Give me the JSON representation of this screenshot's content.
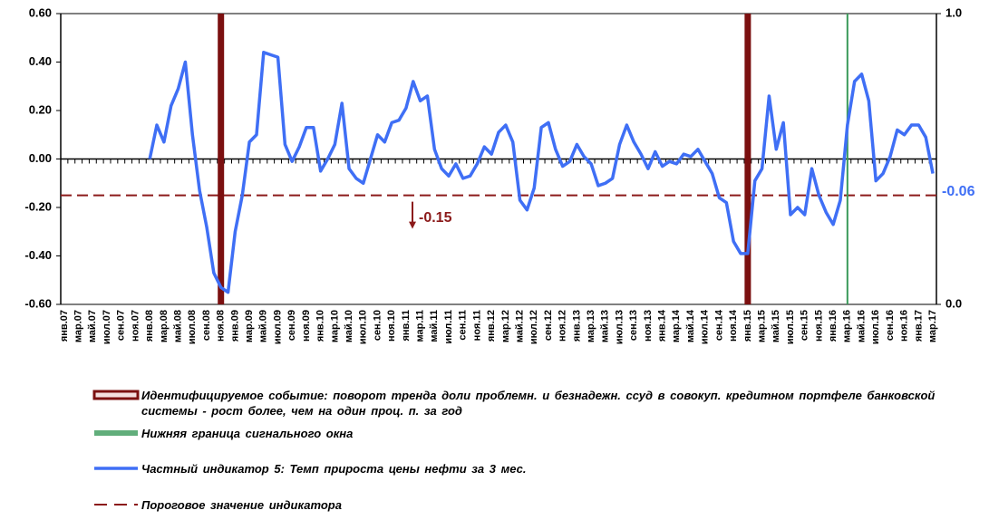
{
  "chart_data": {
    "type": "line",
    "categories": [
      "янв.07",
      null,
      "мар.07",
      null,
      "май.07",
      null,
      "июл.07",
      null,
      "сен.07",
      null,
      "ноя.07",
      null,
      "янв.08",
      null,
      "мар.08",
      null,
      "май.08",
      null,
      "июл.08",
      null,
      "сен.08",
      null,
      "ноя.08",
      null,
      "янв.09",
      null,
      "мар.09",
      null,
      "май.09",
      null,
      "июл.09",
      null,
      "сен.09",
      null,
      "ноя.09",
      null,
      "янв.10",
      null,
      "мар.10",
      null,
      "май.10",
      null,
      "июл.10",
      null,
      "сен.10",
      null,
      "ноя.10",
      null,
      "янв.11",
      null,
      "мар.11",
      null,
      "май.11",
      null,
      "июл.11",
      null,
      "сен.11",
      null,
      "ноя.11",
      null,
      "янв.12",
      null,
      "мар.12",
      null,
      "май.12",
      null,
      "июл.12",
      null,
      "сен.12",
      null,
      "ноя.12",
      null,
      "янв.13",
      null,
      "мар.13",
      null,
      "май.13",
      null,
      "июл.13",
      null,
      "сен.13",
      null,
      "ноя.13",
      null,
      "янв.14",
      null,
      "мар.14",
      null,
      "май.14",
      null,
      "июл.14",
      null,
      "сен.14",
      null,
      "ноя.14",
      null,
      "янв.15",
      null,
      "мар.15",
      null,
      "май.15",
      null,
      "июл.15",
      null,
      "сен.15",
      null,
      "ноя.15",
      null,
      "янв.16",
      null,
      "мар.16",
      null,
      "май.16",
      null,
      "июл.16",
      null,
      "сен.16",
      null,
      "ноя.16",
      null,
      "янв.17",
      null,
      "мар.17"
    ],
    "series": [
      {
        "name": "Частный индикатор 5: Темп прироста цены нефти за 3 мес.",
        "color": "#3f6ff5",
        "type": "line",
        "values": [
          null,
          null,
          null,
          null,
          null,
          null,
          null,
          null,
          null,
          null,
          null,
          null,
          0,
          0.14,
          0.07,
          0.22,
          0.29,
          0.4,
          0.1,
          -0.13,
          -0.28,
          -0.47,
          -0.53,
          -0.55,
          -0.3,
          -0.15,
          0.07,
          0.1,
          0.44,
          0.43,
          0.42,
          0.06,
          -0.01,
          0.05,
          0.13,
          0.13,
          -0.05,
          0,
          0.06,
          0.23,
          -0.04,
          -0.08,
          -0.1,
          0,
          0.1,
          0.07,
          0.15,
          0.16,
          0.21,
          0.32,
          0.24,
          0.26,
          0.04,
          -0.04,
          -0.07,
          -0.02,
          -0.08,
          -0.07,
          -0.02,
          0.05,
          0.02,
          0.11,
          0.14,
          0.07,
          -0.17,
          -0.21,
          -0.12,
          0.13,
          0.15,
          0.04,
          -0.03,
          -0.01,
          0.06,
          0.01,
          -0.02,
          -0.11,
          -0.1,
          -0.08,
          0.06,
          0.14,
          0.07,
          0.02,
          -0.04,
          0.03,
          -0.03,
          -0.01,
          -0.02,
          0.02,
          0.01,
          0.04,
          -0.01,
          -0.06,
          -0.16,
          -0.18,
          -0.34,
          -0.39,
          -0.39,
          -0.09,
          -0.04,
          0.26,
          0.04,
          0.15,
          -0.23,
          -0.2,
          -0.23,
          -0.04,
          -0.15,
          -0.22,
          -0.27,
          -0.17,
          0.14,
          0.32,
          0.35,
          0.24,
          -0.09,
          -0.06,
          0.01,
          0.12,
          0.1,
          0.14,
          0.14,
          0.09,
          -0.06
        ]
      },
      {
        "name": "Идентифицируемое событие: поворот тренда доли проблемн. и безнадежн. ссуд  в совокуп. кредитном портфеле банковской системы  - рост более, чем  на один проц. п. за год",
        "color": "#7b1010",
        "type": "bar",
        "axis": "y2",
        "values": [
          null,
          null,
          null,
          null,
          null,
          null,
          null,
          null,
          null,
          null,
          null,
          null,
          null,
          null,
          null,
          null,
          null,
          null,
          null,
          null,
          null,
          null,
          1,
          null,
          null,
          null,
          null,
          null,
          null,
          null,
          null,
          null,
          null,
          null,
          null,
          null,
          null,
          null,
          null,
          null,
          null,
          null,
          null,
          null,
          null,
          null,
          null,
          null,
          null,
          null,
          null,
          null,
          null,
          null,
          null,
          null,
          null,
          null,
          null,
          null,
          null,
          null,
          null,
          null,
          null,
          null,
          null,
          null,
          null,
          null,
          null,
          null,
          null,
          null,
          null,
          null,
          null,
          null,
          null,
          null,
          null,
          null,
          null,
          null,
          null,
          null,
          null,
          null,
          null,
          null,
          null,
          null,
          null,
          null,
          null,
          null,
          1,
          null,
          null,
          null,
          null,
          null,
          null,
          null,
          null,
          null,
          null,
          null,
          null,
          null,
          null,
          null,
          null,
          null,
          null,
          null,
          null,
          null,
          null,
          null,
          null,
          null,
          null
        ]
      },
      {
        "name": "Нижняя граница сигнального окна",
        "color": "#3a9a5a",
        "type": "thin-bar",
        "axis": "y2",
        "values": [
          null,
          null,
          null,
          null,
          null,
          null,
          null,
          null,
          null,
          null,
          null,
          null,
          null,
          null,
          null,
          null,
          null,
          null,
          null,
          null,
          null,
          null,
          null,
          null,
          null,
          null,
          null,
          null,
          null,
          null,
          null,
          null,
          null,
          null,
          null,
          null,
          null,
          null,
          null,
          null,
          null,
          null,
          null,
          null,
          null,
          null,
          null,
          null,
          null,
          null,
          null,
          null,
          null,
          null,
          null,
          null,
          null,
          null,
          null,
          null,
          null,
          null,
          null,
          null,
          null,
          null,
          null,
          null,
          null,
          null,
          null,
          null,
          null,
          null,
          null,
          null,
          null,
          null,
          null,
          null,
          null,
          null,
          null,
          null,
          null,
          null,
          null,
          null,
          null,
          null,
          null,
          null,
          null,
          null,
          null,
          null,
          null,
          null,
          null,
          null,
          null,
          null,
          null,
          null,
          null,
          null,
          null,
          null,
          null,
          null,
          1,
          null,
          null,
          null,
          null,
          null,
          null,
          null,
          null,
          null,
          null,
          null,
          null
        ]
      }
    ],
    "reference_lines": [
      {
        "name": "Пороговое значение  индикатора",
        "color": "#8b1a1a",
        "value": -0.15
      }
    ],
    "ylim": [
      -0.6,
      0.6
    ],
    "yticks": [
      {
        "value": -0.6,
        "label": "-0.60"
      },
      {
        "value": -0.4,
        "label": "-0.40"
      },
      {
        "value": -0.2,
        "label": "-0.20"
      },
      {
        "value": 0,
        "label": "0.00"
      },
      {
        "value": 0.2,
        "label": "0.20"
      },
      {
        "value": 0.4,
        "label": "0.40"
      },
      {
        "value": 0.6,
        "label": "0.60"
      }
    ],
    "y2lim": [
      0,
      1
    ],
    "y2ticks": [
      {
        "value": 0,
        "label": "0.0"
      },
      {
        "value": 1,
        "label": "1.0"
      }
    ],
    "legend_order": [
      1,
      2,
      0
    ]
  }
}
